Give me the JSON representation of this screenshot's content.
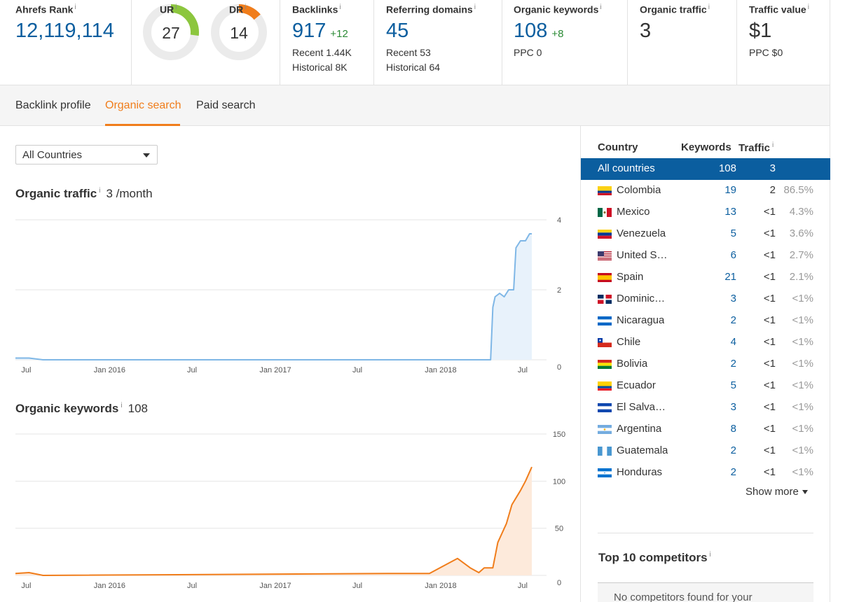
{
  "metrics": {
    "ahrefs_rank": {
      "label": "Ahrefs Rank",
      "value": "12,119,114"
    },
    "ur": {
      "label": "UR",
      "value": "27",
      "score": 27
    },
    "dr": {
      "label": "DR",
      "value": "14",
      "score": 14
    },
    "backlinks": {
      "label": "Backlinks",
      "value": "917",
      "delta": "+12",
      "recent": "Recent 1.44K",
      "historical": "Historical 8K"
    },
    "referring_domains": {
      "label": "Referring domains",
      "value": "45",
      "recent": "Recent 53",
      "historical": "Historical 64"
    },
    "organic_keywords": {
      "label": "Organic keywords",
      "value": "108",
      "delta": "+8",
      "ppc": "PPC 0"
    },
    "organic_traffic": {
      "label": "Organic traffic",
      "value": "3"
    },
    "traffic_value": {
      "label": "Traffic value",
      "value": "$1",
      "ppc": "PPC $0"
    },
    "info_icon": "i"
  },
  "colors": {
    "ur_gauge": "#8cc63e",
    "dr_gauge": "#f07d1b",
    "gauge_track": "#ebebeb",
    "link_blue": "#0b5e9f",
    "accent_orange": "#f07d1b",
    "traffic_line": "#7fb7e6",
    "traffic_fill": "#e8f2fb",
    "keywords_line": "#f07d1b",
    "keywords_fill": "#fdeadb"
  },
  "tabs": [
    {
      "label": "Backlink profile",
      "active": false
    },
    {
      "label": "Organic search",
      "active": true
    },
    {
      "label": "Paid search",
      "active": false
    }
  ],
  "country_select": {
    "value": "All Countries"
  },
  "organic_traffic_section": {
    "title": "Organic traffic",
    "value": "3 /month"
  },
  "organic_keywords_section": {
    "title": "Organic keywords",
    "value": "108"
  },
  "chart_data": [
    {
      "type": "area",
      "title": "Organic traffic",
      "x_tick_labels": [
        "Jul",
        "Jan 2016",
        "Jul",
        "Jan 2017",
        "Jul",
        "Jan 2018",
        "Jul"
      ],
      "y_tick_labels": [
        "4",
        "2",
        "0"
      ],
      "ylim": [
        0,
        4
      ],
      "xlim": [
        "2015-06",
        "2018-08"
      ],
      "series": [
        {
          "x": [
            "2015-06",
            "2015-07",
            "2015-08",
            "2018-03",
            "2018-04-15",
            "2018-04-20",
            "2018-04-25",
            "2018-05-05",
            "2018-05-15",
            "2018-05-25",
            "2018-06-05",
            "2018-06-10",
            "2018-06-20",
            "2018-07-01",
            "2018-07-10",
            "2018-07-15"
          ],
          "y": [
            0.05,
            0.05,
            0,
            0,
            0,
            1.5,
            1.8,
            1.9,
            1.8,
            2,
            2,
            3.2,
            3.4,
            3.4,
            3.6,
            3.6
          ]
        }
      ]
    },
    {
      "type": "area",
      "title": "Organic keywords",
      "x_tick_labels": [
        "Jul",
        "Jan 2016",
        "Jul",
        "Jan 2017",
        "Jul",
        "Jan 2018",
        "Jul"
      ],
      "y_tick_labels": [
        "150",
        "100",
        "50",
        "0"
      ],
      "ylim": [
        0,
        150
      ],
      "xlim": [
        "2015-06",
        "2018-08"
      ],
      "series": [
        {
          "x": [
            "2015-06",
            "2015-07",
            "2015-08",
            "2017-09",
            "2017-12",
            "2018-01",
            "2018-02",
            "2018-03",
            "2018-03-20",
            "2018-04",
            "2018-04-20",
            "2018-05",
            "2018-05-20",
            "2018-06",
            "2018-06-20",
            "2018-07",
            "2018-07-15"
          ],
          "y": [
            2,
            3,
            0,
            2,
            2,
            10,
            18,
            8,
            3,
            8,
            8,
            35,
            55,
            75,
            90,
            100,
            115
          ]
        }
      ]
    }
  ],
  "countries_table": {
    "headers": {
      "country": "Country",
      "keywords": "Keywords",
      "traffic": "Traffic"
    },
    "all": {
      "name": "All countries",
      "keywords": "108",
      "traffic": "3"
    },
    "rows": [
      {
        "name": "Colombia",
        "keywords": "19",
        "traffic": "2",
        "pct": "86.5%",
        "flag": "co"
      },
      {
        "name": "Mexico",
        "keywords": "13",
        "traffic": "<1",
        "pct": "4.3%",
        "flag": "mx"
      },
      {
        "name": "Venezuela",
        "keywords": "5",
        "traffic": "<1",
        "pct": "3.6%",
        "flag": "ve"
      },
      {
        "name": "United S…",
        "keywords": "6",
        "traffic": "<1",
        "pct": "2.7%",
        "flag": "us"
      },
      {
        "name": "Spain",
        "keywords": "21",
        "traffic": "<1",
        "pct": "2.1%",
        "flag": "es"
      },
      {
        "name": "Dominic…",
        "keywords": "3",
        "traffic": "<1",
        "pct": "<1%",
        "flag": "do"
      },
      {
        "name": "Nicaragua",
        "keywords": "2",
        "traffic": "<1",
        "pct": "<1%",
        "flag": "ni"
      },
      {
        "name": "Chile",
        "keywords": "4",
        "traffic": "<1",
        "pct": "<1%",
        "flag": "cl"
      },
      {
        "name": "Bolivia",
        "keywords": "2",
        "traffic": "<1",
        "pct": "<1%",
        "flag": "bo"
      },
      {
        "name": "Ecuador",
        "keywords": "5",
        "traffic": "<1",
        "pct": "<1%",
        "flag": "ec"
      },
      {
        "name": "El Salva…",
        "keywords": "3",
        "traffic": "<1",
        "pct": "<1%",
        "flag": "sv"
      },
      {
        "name": "Argentina",
        "keywords": "8",
        "traffic": "<1",
        "pct": "<1%",
        "flag": "ar"
      },
      {
        "name": "Guatemala",
        "keywords": "2",
        "traffic": "<1",
        "pct": "<1%",
        "flag": "gt"
      },
      {
        "name": "Honduras",
        "keywords": "2",
        "traffic": "<1",
        "pct": "<1%",
        "flag": "hn"
      }
    ],
    "show_more": "Show more"
  },
  "competitors": {
    "title": "Top 10 competitors",
    "empty_text": "No competitors found for your"
  }
}
